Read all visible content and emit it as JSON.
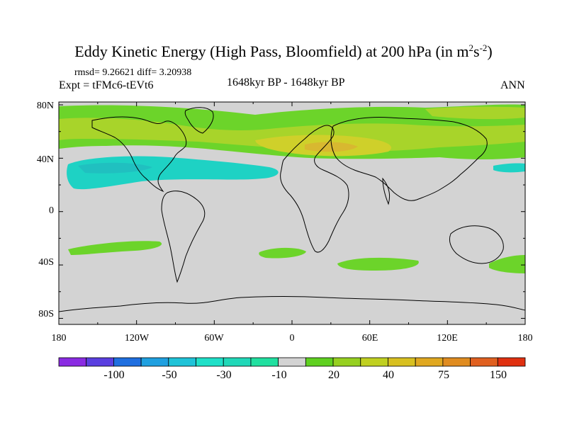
{
  "title": {
    "text": "Eddy Kinetic Energy (High Pass, Bloomfield) at 200 hPa (in m",
    "sup1": "2",
    "mid": "s",
    "sup2": "-2",
    "close": ")"
  },
  "stats": "rmsd= 9.26621 diff= 3.20938",
  "experiment": "Expt = tFMc6-tEVt6",
  "period": "1648kyr BP - 1648kyr BP",
  "season": "ANN",
  "lat_labels": [
    "80N",
    "40N",
    "0",
    "40S",
    "80S"
  ],
  "lon_labels": [
    "180",
    "120W",
    "60W",
    "0",
    "60E",
    "120E",
    "180"
  ],
  "colorbar": {
    "colors": [
      "#8a2be2",
      "#5a3fe0",
      "#1f6fe0",
      "#1fa0e0",
      "#1fc3d8",
      "#1fe0c8",
      "#20d8b8",
      "#20e0a0",
      "#d3d3d3",
      "#5fd020",
      "#96d020",
      "#c0d020",
      "#d8c020",
      "#e0a820",
      "#e08c20",
      "#e06020",
      "#e03010"
    ],
    "labels": [
      "-100",
      "-50",
      "-30",
      "-10",
      "20",
      "40",
      "75",
      "150"
    ]
  },
  "colors": {
    "ocean": "#d3d3d3",
    "green": "#6cd42a",
    "yellowgreen": "#a8d42a",
    "yellow": "#cfd02a",
    "gold": "#d8b830",
    "cyan": "#1ed2c4",
    "teal": "#20c0c0"
  }
}
